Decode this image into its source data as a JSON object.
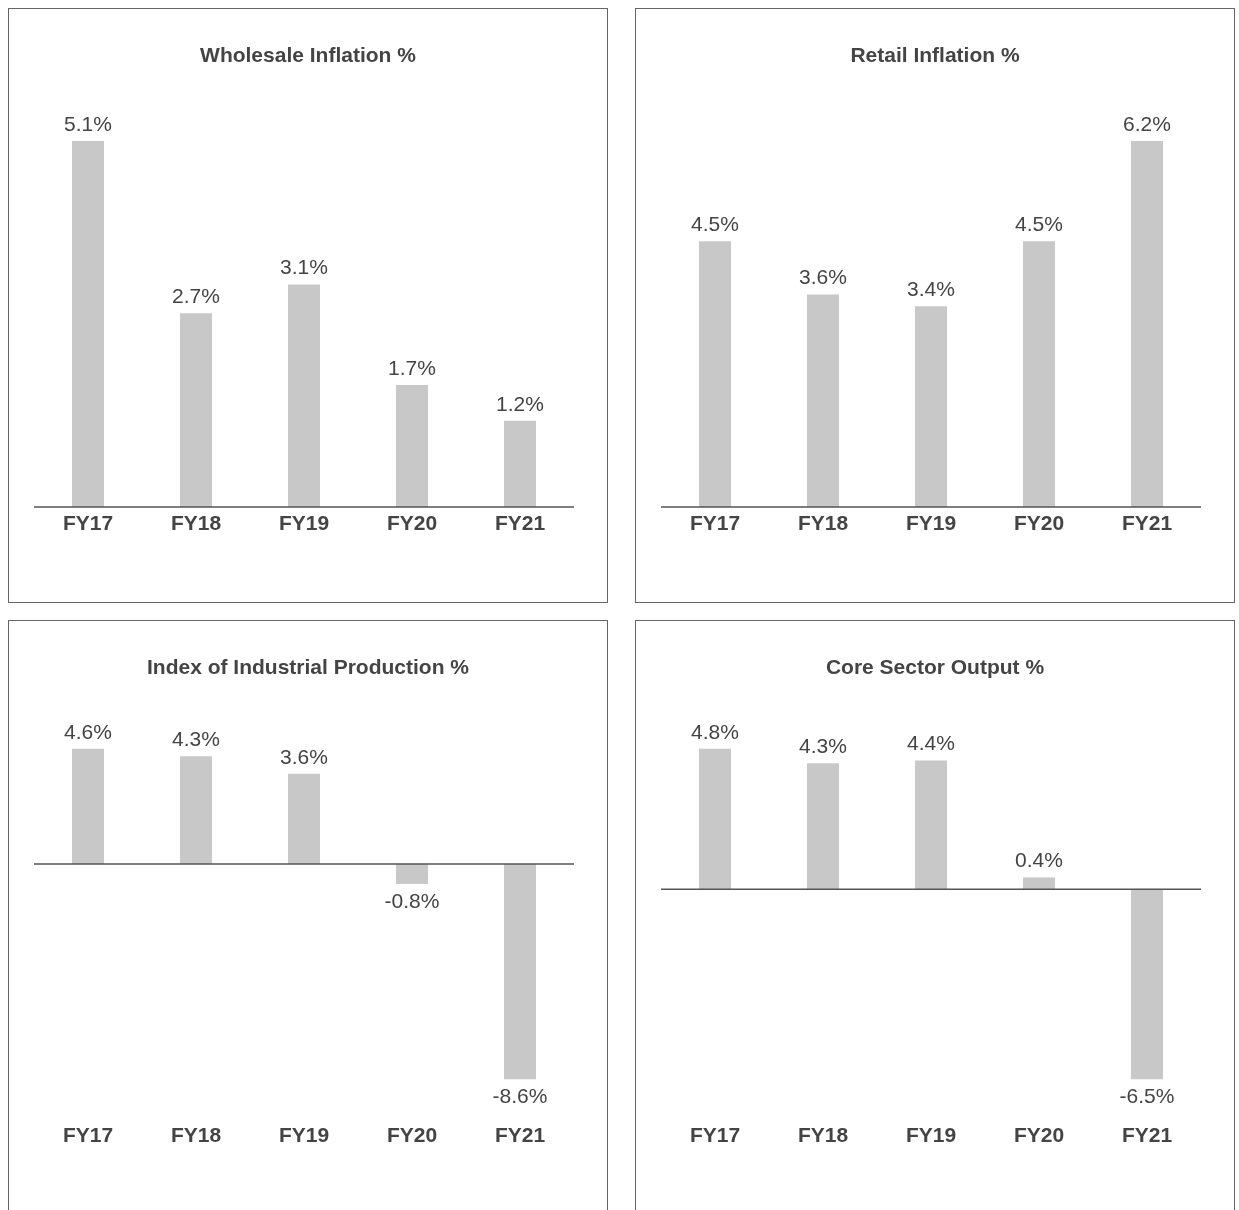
{
  "chart_data": [
    {
      "type": "bar",
      "title": "Wholesale Inflation %",
      "categories": [
        "FY17",
        "FY18",
        "FY19",
        "FY20",
        "FY21"
      ],
      "values": [
        5.1,
        2.7,
        3.1,
        1.7,
        1.2
      ],
      "color": "#c8c8c8",
      "data_labels": true,
      "value_labels": [
        "5.1%",
        "2.7%",
        "3.1%",
        "1.7%",
        "1.2%"
      ]
    },
    {
      "type": "bar",
      "title": "Retail Inflation %",
      "categories": [
        "FY17",
        "FY18",
        "FY19",
        "FY20",
        "FY21"
      ],
      "values": [
        4.5,
        3.6,
        3.4,
        4.5,
        6.2
      ],
      "color": "#c8c8c8",
      "data_labels": true,
      "value_labels": [
        "4.5%",
        "3.6%",
        "3.4%",
        "4.5%",
        "6.2%"
      ]
    },
    {
      "type": "bar",
      "title": "Index of Industrial Production %",
      "categories": [
        "FY17",
        "FY18",
        "FY19",
        "FY20",
        "FY21"
      ],
      "values": [
        4.6,
        4.3,
        3.6,
        -0.8,
        -8.6
      ],
      "color": "#c8c8c8",
      "data_labels": true,
      "value_labels": [
        "4.6%",
        "4.3%",
        "3.6%",
        "-0.8%",
        "-8.6%"
      ]
    },
    {
      "type": "bar",
      "title": "Core Sector Output %",
      "categories": [
        "FY17",
        "FY18",
        "FY19",
        "FY20",
        "FY21"
      ],
      "values": [
        4.8,
        4.3,
        4.4,
        0.4,
        -6.5
      ],
      "color": "#c8c8c8",
      "data_labels": true,
      "value_labels": [
        "4.8%",
        "4.3%",
        "4.4%",
        "0.4%",
        "-6.5%"
      ]
    }
  ]
}
